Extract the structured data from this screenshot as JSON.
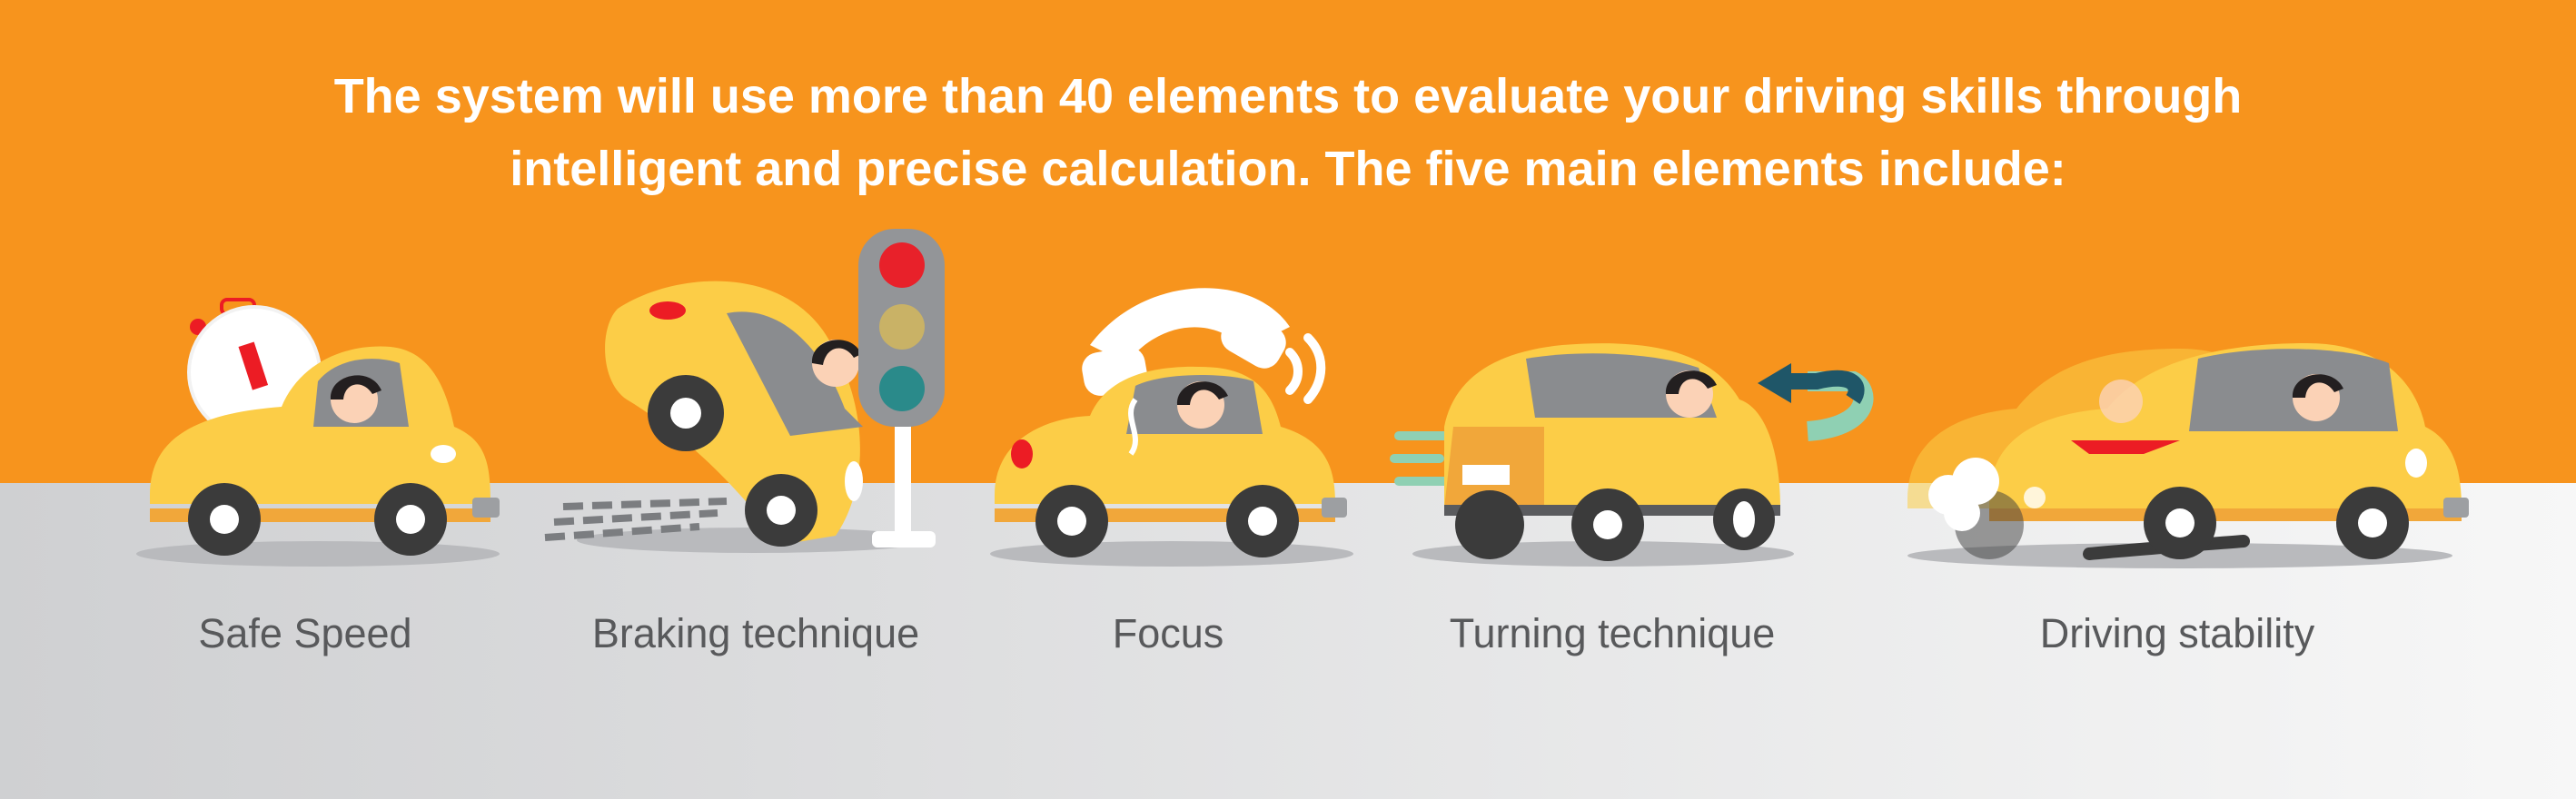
{
  "headline": {
    "line1": "The system will use more than 40 elements to evaluate your driving skills through",
    "line2": "intelligent and precise calculation. The five main elements include:"
  },
  "elements": [
    {
      "label": "Safe Speed",
      "icon": "stopwatch-car-icon"
    },
    {
      "label": "Braking technique",
      "icon": "braking-car-icon"
    },
    {
      "label": "Focus",
      "icon": "phone-car-icon"
    },
    {
      "label": "Turning technique",
      "icon": "turning-car-icon"
    },
    {
      "label": "Driving stability",
      "icon": "stable-car-icon"
    }
  ],
  "colors": {
    "banner": "#f7941d",
    "road_light": "#ebebeb",
    "road_dark": "#cfd0d2",
    "car_body": "#fccd47",
    "car_shadow": "#f1a73a",
    "window": "#8a8c8f",
    "tire": "#3b3b3b",
    "text": "#58595b",
    "headline_text": "#ffffff",
    "accent_red": "#ec1c24",
    "signal_red": "#e8212a",
    "signal_yellow": "#c9b266",
    "signal_green": "#2a8a8a",
    "arrow_dark": "#1f5668",
    "arrow_light": "#8fd0b3"
  }
}
